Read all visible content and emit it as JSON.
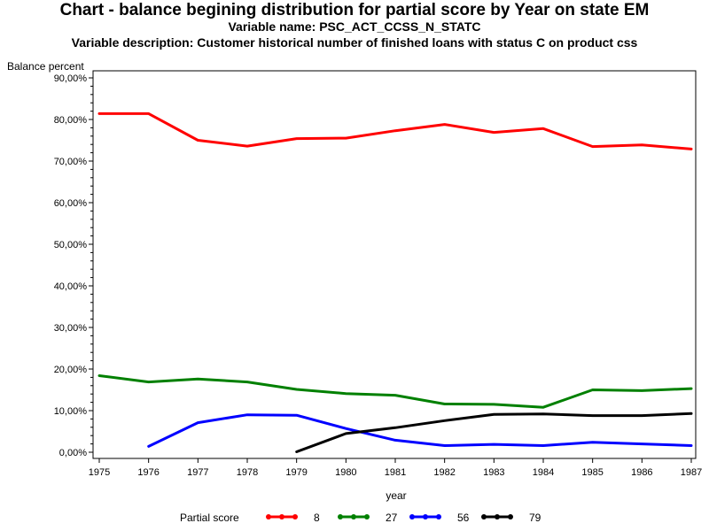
{
  "chart_data": {
    "type": "line",
    "title": "Chart - balance begining distribution for partial score by Year on state EM",
    "subtitle": "Variable name: PSC_ACT_CCSS_N_STATC",
    "description": "Variable description: Customer historical number of finished loans with status C on product css",
    "ylabel": "Balance percent",
    "xlabel": "year",
    "legend_title": "Partial score",
    "legend_position": "bottom",
    "grid": false,
    "x": [
      1975,
      1976,
      1977,
      1978,
      1979,
      1980,
      1981,
      1982,
      1983,
      1984,
      1985,
      1986,
      1987
    ],
    "x_tick_labels": [
      "1975",
      "1976",
      "1977",
      "1978",
      "1979",
      "1980",
      "1981",
      "1982",
      "1983",
      "1984",
      "1985",
      "1986",
      "1987"
    ],
    "ylim": [
      0,
      90
    ],
    "y_tick_values": [
      0,
      10,
      20,
      30,
      40,
      50,
      60,
      70,
      80,
      90
    ],
    "y_tick_labels": [
      "0,00%",
      "10,00%",
      "20,00%",
      "30,00%",
      "40,00%",
      "50,00%",
      "60,00%",
      "70,00%",
      "80,00%",
      "90,00%"
    ],
    "series": [
      {
        "name": "8",
        "color": "#ff0000",
        "values": [
          81.4,
          81.4,
          75.0,
          73.6,
          75.4,
          75.5,
          77.3,
          78.8,
          76.9,
          77.8,
          73.5,
          73.9,
          72.9
        ]
      },
      {
        "name": "27",
        "color": "#008000",
        "values": [
          18.4,
          16.9,
          17.6,
          16.9,
          15.1,
          14.1,
          13.7,
          11.6,
          11.5,
          10.8,
          15.0,
          14.8,
          15.3
        ]
      },
      {
        "name": "56",
        "color": "#0000ff",
        "values": [
          null,
          1.4,
          7.1,
          9.0,
          8.9,
          5.7,
          2.9,
          1.6,
          1.9,
          1.6,
          2.4,
          2.0,
          1.6
        ]
      },
      {
        "name": "79",
        "color": "#000000",
        "values": [
          null,
          null,
          null,
          null,
          0.1,
          4.5,
          5.9,
          7.6,
          9.1,
          9.2,
          8.8,
          8.8,
          9.3
        ]
      }
    ]
  }
}
